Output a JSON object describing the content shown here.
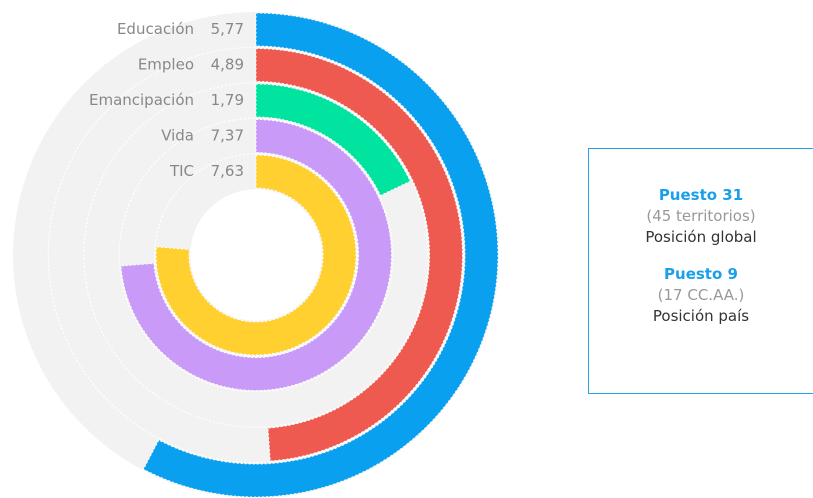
{
  "chart_data": {
    "type": "radial_bar",
    "categories": [
      "Educación",
      "Empleo",
      "Emancipación",
      "Vida",
      "TIC"
    ],
    "values": [
      5.77,
      4.89,
      1.79,
      7.37,
      7.63
    ],
    "value_labels": [
      "5,77",
      "4,89",
      "1,79",
      "7,37",
      "7,63"
    ],
    "colors": [
      "#0aa0f0",
      "#ee5a50",
      "#00e4a0",
      "#c99af8",
      "#ffd030"
    ],
    "ylim": [
      0,
      10
    ]
  },
  "panel": {
    "global": {
      "rank": "Puesto 31",
      "scope": "(45 territorios)",
      "label": "Posición global"
    },
    "country": {
      "rank": "Puesto 9",
      "scope": "(17 CC.AA.)",
      "label": "Posición país"
    }
  }
}
